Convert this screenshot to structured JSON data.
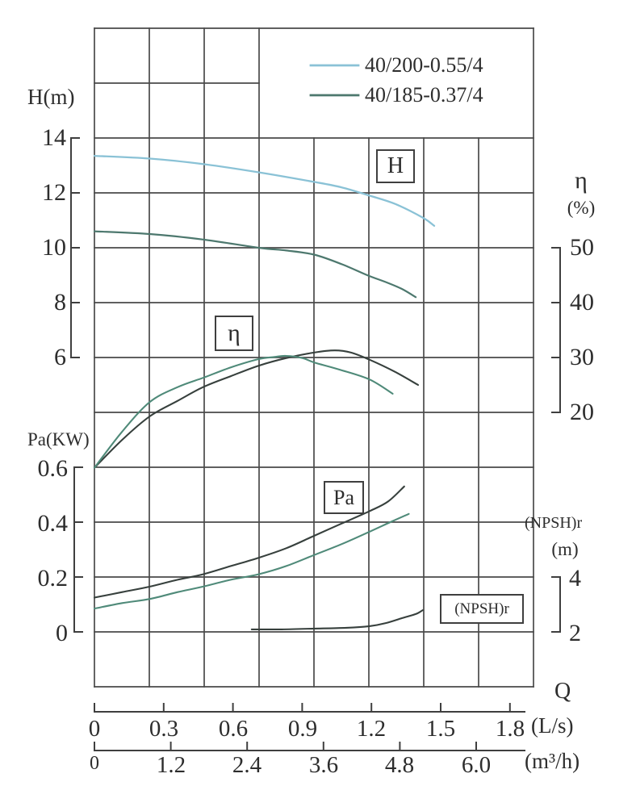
{
  "legend": {
    "items": [
      {
        "label": "40/200-0.55/4",
        "color": "#8ac2d6"
      },
      {
        "label": "40/185-0.37/4",
        "color": "#4d786e"
      }
    ]
  },
  "axes": {
    "h": {
      "title": "H(m)",
      "ticks": [
        "14",
        "12",
        "10",
        "8",
        "6"
      ]
    },
    "pa": {
      "title": "Pa(KW)",
      "ticks": [
        "0.6",
        "0.4",
        "0.2",
        "0"
      ]
    },
    "eta": {
      "title": "η",
      "unit": "(%)",
      "ticks": [
        "50",
        "40",
        "30",
        "20"
      ]
    },
    "npsh": {
      "title": "(NPSH)r",
      "unit": "(m)",
      "ticks": [
        "4",
        "2"
      ]
    },
    "q": {
      "title": "Q",
      "lps_unit": "(L/s)",
      "lps_ticks": [
        "0",
        "0.3",
        "0.6",
        "0.9",
        "1.2",
        "1.5",
        "1.8"
      ],
      "m3h_unit": "(m³/h)",
      "m3h_ticks": [
        "0",
        "1.2",
        "2.4",
        "3.6",
        "4.8",
        "6.0"
      ]
    }
  },
  "curve_labels": {
    "h": "H",
    "eta": "η",
    "pa": "Pa",
    "npsh": "(NPSH)r"
  },
  "chart_data": {
    "type": "line",
    "title": "",
    "xlabel": "Q",
    "x_units": [
      "L/s",
      "m³/h"
    ],
    "x_range_lps": [
      0,
      1.9
    ],
    "grid": true,
    "legend_position": "top-right",
    "axes": {
      "H": {
        "label": "H(m)",
        "range": [
          6,
          14
        ],
        "side": "left"
      },
      "eta": {
        "label": "η(%)",
        "range": [
          20,
          50
        ],
        "side": "right"
      },
      "Pa": {
        "label": "Pa(KW)",
        "range": [
          0,
          0.6
        ],
        "side": "left"
      },
      "NPSHr": {
        "label": "(NPSH)r(m)",
        "range": [
          2,
          4
        ],
        "side": "right"
      }
    },
    "series": [
      {
        "name": "H 40/200-0.55/4",
        "axis": "H",
        "color": "#8ac2d6",
        "width": 2.3,
        "x": [
          0,
          0.24,
          0.47,
          0.71,
          0.95,
          1.07,
          1.19,
          1.3,
          1.42,
          1.47
        ],
        "y": [
          13.35,
          13.25,
          13.05,
          12.75,
          12.4,
          12.2,
          11.9,
          11.6,
          11.1,
          10.8
        ]
      },
      {
        "name": "H 40/185-0.37/4",
        "axis": "H",
        "color": "#4d786e",
        "width": 2.2,
        "x": [
          0,
          0.24,
          0.47,
          0.71,
          0.83,
          0.95,
          1.07,
          1.18,
          1.26,
          1.33,
          1.39
        ],
        "y": [
          10.6,
          10.5,
          10.3,
          10.0,
          9.9,
          9.75,
          9.4,
          9.0,
          8.75,
          8.5,
          8.2
        ]
      },
      {
        "name": "η 40/200-0.55/4",
        "axis": "eta",
        "color": "#37403d",
        "width": 2.1,
        "x": [
          0,
          0.12,
          0.24,
          0.36,
          0.47,
          0.59,
          0.71,
          0.83,
          0.95,
          1.04,
          1.11,
          1.19,
          1.3,
          1.4
        ],
        "y": [
          9.9,
          15.0,
          19.3,
          22.1,
          24.6,
          26.6,
          28.5,
          29.9,
          30.9,
          31.3,
          30.9,
          29.6,
          27.4,
          25.0
        ]
      },
      {
        "name": "η 40/185-0.37/4",
        "axis": "eta",
        "color": "#4f8a79",
        "width": 2.1,
        "x": [
          0,
          0.12,
          0.24,
          0.36,
          0.47,
          0.59,
          0.71,
          0.78,
          0.83,
          0.9,
          0.95,
          1.06,
          1.19,
          1.29
        ],
        "y": [
          9.9,
          16.5,
          21.9,
          24.6,
          26.3,
          28.2,
          29.7,
          30.1,
          30.3,
          29.9,
          29.1,
          27.8,
          26.0,
          23.4
        ]
      },
      {
        "name": "Pa 40/200-0.55/4",
        "axis": "Pa",
        "color": "#37403d",
        "width": 2.1,
        "x": [
          0,
          0.12,
          0.24,
          0.36,
          0.47,
          0.59,
          0.71,
          0.83,
          0.95,
          1.07,
          1.19,
          1.27,
          1.34
        ],
        "y": [
          0.125,
          0.145,
          0.165,
          0.19,
          0.21,
          0.24,
          0.27,
          0.305,
          0.35,
          0.395,
          0.44,
          0.475,
          0.53
        ]
      },
      {
        "name": "Pa 40/185-0.37/4",
        "axis": "Pa",
        "color": "#4f8a79",
        "width": 2.1,
        "x": [
          0,
          0.12,
          0.24,
          0.36,
          0.47,
          0.59,
          0.71,
          0.83,
          0.95,
          1.07,
          1.19,
          1.28,
          1.36
        ],
        "y": [
          0.085,
          0.105,
          0.12,
          0.145,
          0.165,
          0.19,
          0.21,
          0.24,
          0.28,
          0.32,
          0.365,
          0.4,
          0.43
        ]
      },
      {
        "name": "(NPSH)r",
        "axis": "NPSHr",
        "color": "#37403d",
        "width": 2.1,
        "x": [
          0.68,
          0.81,
          0.95,
          1.09,
          1.19,
          1.26,
          1.33,
          1.39,
          1.42
        ],
        "y": [
          2.09,
          2.09,
          2.12,
          2.15,
          2.21,
          2.32,
          2.5,
          2.65,
          2.79
        ]
      }
    ]
  }
}
